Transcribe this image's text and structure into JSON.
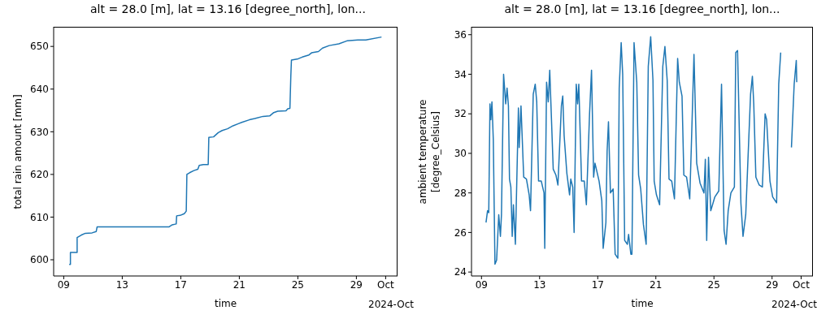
{
  "chart_data": [
    {
      "type": "line",
      "title": "alt = 28.0 [m], lat = 13.16 [degree_north], lon...",
      "xlabel": "time",
      "ylabel": "total rain amount [mm]",
      "annotations": [
        "2024-Oct"
      ],
      "xlim": [
        "2024-09-08T07:30",
        "2024-10-01T19:30"
      ],
      "xticks": [
        {
          "value": "2024-09-09",
          "label": "09"
        },
        {
          "value": "2024-09-13",
          "label": "13"
        },
        {
          "value": "2024-09-17",
          "label": "17"
        },
        {
          "value": "2024-09-21",
          "label": "21"
        },
        {
          "value": "2024-09-25",
          "label": "25"
        },
        {
          "value": "2024-09-29",
          "label": "29"
        },
        {
          "value": "2024-10-01",
          "label": "Oct"
        }
      ],
      "ylim": [
        596.2,
        654.6
      ],
      "yticks": [
        600,
        610,
        620,
        630,
        640,
        650
      ],
      "series": [
        {
          "color": "#1f77b4",
          "x": [
            "2024-09-09T09:00",
            "2024-09-09T11:00",
            "2024-09-09T11:00",
            "2024-09-09T22:00",
            "2024-09-09T22:00",
            "2024-09-10T05:00",
            "2024-09-10T11:30",
            "2024-09-10T22:30",
            "2024-09-11T05:15",
            "2024-09-11T06:45",
            "2024-09-16T04:30",
            "2024-09-16T10:00",
            "2024-09-16T16:30",
            "2024-09-16T17:15",
            "2024-09-16T23:00",
            "2024-09-17T05:45",
            "2024-09-17T09:00",
            "2024-09-17T10:00",
            "2024-09-17T14:30",
            "2024-09-17T21:30",
            "2024-09-18T04:00",
            "2024-09-18T06:15",
            "2024-09-18T13:00",
            "2024-09-18T21:00",
            "2024-09-18T22:00",
            "2024-09-19T05:45",
            "2024-09-19T13:30",
            "2024-09-19T20:00",
            "2024-09-20T04:45",
            "2024-09-20T13:45",
            "2024-09-20T22:30",
            "2024-09-21T04:00",
            "2024-09-21T16:30",
            "2024-09-22T01:30",
            "2024-09-22T14:45",
            "2024-09-23T01:45",
            "2024-09-23T08:30",
            "2024-09-23T15:00",
            "2024-09-24T04:30",
            "2024-09-24T07:30",
            "2024-09-24T11:00",
            "2024-09-24T12:30",
            "2024-09-24T13:30",
            "2024-09-25T00:30",
            "2024-09-25T07:15",
            "2024-09-25T18:15",
            "2024-09-25T22:30",
            "2024-09-26T09:45",
            "2024-09-26T16:30",
            "2024-09-27T03:30",
            "2024-09-27T19:15",
            "2024-09-28T08:30",
            "2024-09-29T02:15",
            "2024-09-29T15:30",
            "2024-09-30T17:15"
          ],
          "values": [
            598.9,
            598.9,
            601.7,
            601.7,
            605.2,
            605.8,
            606.2,
            606.3,
            606.6,
            607.7,
            607.7,
            608.2,
            608.4,
            610.3,
            610.4,
            610.8,
            611.4,
            620.0,
            620.4,
            620.9,
            621.2,
            622.1,
            622.3,
            622.3,
            628.7,
            628.8,
            629.8,
            630.3,
            630.7,
            631.4,
            631.9,
            632.2,
            632.8,
            633.1,
            633.6,
            633.7,
            634.5,
            634.8,
            634.9,
            635.4,
            635.5,
            643.1,
            646.8,
            647.1,
            647.5,
            648.0,
            648.5,
            648.8,
            649.6,
            650.2,
            650.6,
            651.3,
            651.5,
            651.5,
            652.2
          ]
        }
      ]
    },
    {
      "type": "line",
      "title": "alt = 28.0 [m], lat = 13.16 [degree_north], lon...",
      "xlabel": "time",
      "ylabel": "ambient temperature\n[degree_Celsius]",
      "annotations": [
        "2024-Oct"
      ],
      "xlim": [
        "2024-09-08T07:30",
        "2024-10-01T19:30"
      ],
      "xticks": [
        {
          "value": "2024-09-09",
          "label": "09"
        },
        {
          "value": "2024-09-13",
          "label": "13"
        },
        {
          "value": "2024-09-17",
          "label": "17"
        },
        {
          "value": "2024-09-21",
          "label": "21"
        },
        {
          "value": "2024-09-25",
          "label": "25"
        },
        {
          "value": "2024-09-29",
          "label": "29"
        },
        {
          "value": "2024-10-01",
          "label": "Oct"
        }
      ],
      "ylim": [
        23.8,
        36.4
      ],
      "yticks": [
        24,
        26,
        28,
        30,
        32,
        34,
        36
      ],
      "series": [
        {
          "color": "#1f77b4",
          "x": [
            "2024-09-09T07:30",
            "2024-09-09T10:00",
            "2024-09-09T12:00",
            "2024-09-09T14:00",
            "2024-09-09T15:30",
            "2024-09-09T17:15",
            "2024-09-09T19:30",
            "2024-09-09T22:15",
            "2024-09-10T01:00",
            "2024-09-10T04:30",
            "2024-09-10T07:15",
            "2024-09-10T09:00",
            "2024-09-10T12:30",
            "2024-09-10T16:00",
            "2024-09-10T18:15",
            "2024-09-10T20:30",
            "2024-09-10T22:15",
            "2024-09-11T00:30",
            "2024-09-11T02:45",
            "2024-09-11T04:45",
            "2024-09-11T08:00",
            "2024-09-11T13:00",
            "2024-09-11T14:15",
            "2024-09-11T17:15",
            "2024-09-11T21:45",
            "2024-09-12T02:15",
            "2024-09-12T06:45",
            "2024-09-12T09:00",
            "2024-09-12T13:30",
            "2024-09-12T16:45",
            "2024-09-12T19:15",
            "2024-09-12T22:15",
            "2024-09-13T02:45",
            "2024-09-13T07:15",
            "2024-09-13T08:30",
            "2024-09-13T11:30",
            "2024-09-13T14:15",
            "2024-09-13T16:45",
            "2024-09-13T22:30",
            "2024-09-14T03:00",
            "2024-09-14T06:15",
            "2024-09-14T12:00",
            "2024-09-14T14:15",
            "2024-09-14T16:30",
            "2024-09-14T21:00",
            "2024-09-15T01:30",
            "2024-09-15T03:30",
            "2024-09-15T06:45",
            "2024-09-15T09:00",
            "2024-09-15T12:30",
            "2024-09-15T14:45",
            "2024-09-15T16:45",
            "2024-09-15T21:15",
            "2024-09-16T01:45",
            "2024-09-16T05:15",
            "2024-09-16T10:30",
            "2024-09-16T13:45",
            "2024-09-16T17:15",
            "2024-09-16T19:30",
            "2024-09-17T02:15",
            "2024-09-17T06:45",
            "2024-09-17T09:00",
            "2024-09-17T13:30",
            "2024-09-17T15:30",
            "2024-09-17T17:45",
            "2024-09-17T21:00",
            "2024-09-18T01:30",
            "2024-09-18T04:45",
            "2024-09-18T09:15",
            "2024-09-18T11:30",
            "2024-09-18T14:45",
            "2024-09-18T17:15",
            "2024-09-18T20:30",
            "2024-09-19T01:00",
            "2024-09-19T03:00",
            "2024-09-19T06:45",
            "2024-09-19T08:30",
            "2024-09-19T12:00",
            "2024-09-19T16:30",
            "2024-09-19T19:30",
            "2024-09-19T23:00",
            "2024-09-20T03:30",
            "2024-09-20T08:00",
            "2024-09-20T11:30",
            "2024-09-20T15:30",
            "2024-09-20T19:15",
            "2024-09-20T21:15",
            "2024-09-21T01:00",
            "2024-09-21T06:15",
            "2024-09-21T11:30",
            "2024-09-21T15:00",
            "2024-09-21T18:45",
            "2024-09-21T21:45",
            "2024-09-22T02:15",
            "2024-09-22T06:45",
            "2024-09-22T12:00",
            "2024-09-22T14:45",
            "2024-09-22T19:15",
            "2024-09-22T22:15",
            "2024-09-23T02:45",
            "2024-09-23T08:00",
            "2024-09-23T10:30",
            "2024-09-23T15:00",
            "2024-09-23T19:30",
            "2024-09-24T01:00",
            "2024-09-24T07:30",
            "2024-09-24T09:45",
            "2024-09-24T12:00",
            "2024-09-24T15:00",
            "2024-09-24T18:45",
            "2024-09-25T01:30",
            "2024-09-25T08:00",
            "2024-09-25T12:30",
            "2024-09-25T16:45",
            "2024-09-25T20:00",
            "2024-09-25T23:30",
            "2024-09-26T04:00",
            "2024-09-26T09:45",
            "2024-09-26T12:00",
            "2024-09-26T15:00",
            "2024-09-26T20:30",
            "2024-09-27T00:00",
            "2024-09-27T04:30",
            "2024-09-27T12:30",
            "2024-09-27T15:30",
            "2024-09-27T17:45",
            "2024-09-27T21:15",
            "2024-09-28T02:45",
            "2024-09-28T08:00",
            "2024-09-28T12:30",
            "2024-09-28T15:00",
            "2024-09-28T20:30",
            "2024-09-29T01:00",
            "2024-09-29T07:30",
            "2024-09-29T11:00",
            "2024-09-29T14:15",
            "2024-09-30T00:00",
            "2024-09-30T08:00",
            "2024-09-30T12:30",
            "2024-09-30T16:00",
            "2024-09-30T16:45"
          ],
          "values": [
            26.5,
            27.1,
            27.0,
            32.5,
            31.7,
            32.6,
            30.7,
            24.4,
            24.6,
            26.9,
            25.8,
            26.9,
            34.0,
            32.5,
            33.3,
            32.4,
            28.7,
            28.3,
            25.8,
            27.4,
            25.4,
            32.3,
            30.3,
            32.4,
            28.8,
            28.7,
            27.9,
            27.1,
            33.0,
            33.5,
            32.6,
            28.6,
            28.6,
            28.0,
            25.2,
            33.6,
            32.6,
            34.2,
            29.2,
            28.9,
            28.4,
            32.4,
            32.9,
            30.9,
            29.0,
            27.9,
            28.7,
            28.3,
            26.0,
            33.5,
            32.5,
            33.5,
            28.6,
            28.6,
            27.4,
            32.0,
            34.2,
            28.8,
            29.5,
            28.6,
            27.6,
            25.2,
            26.5,
            30.1,
            31.6,
            28.0,
            28.2,
            24.9,
            24.7,
            33.3,
            35.6,
            34.0,
            25.6,
            25.4,
            25.9,
            24.9,
            24.9,
            35.6,
            33.6,
            28.9,
            28.2,
            26.4,
            25.4,
            34.4,
            35.9,
            33.7,
            28.6,
            27.9,
            27.4,
            34.4,
            35.4,
            33.7,
            28.7,
            28.6,
            27.7,
            34.8,
            33.6,
            32.9,
            28.9,
            28.8,
            27.7,
            30.2,
            35.0,
            29.5,
            28.5,
            28.0,
            29.7,
            25.6,
            29.8,
            27.1,
            27.8,
            28.1,
            33.5,
            26.1,
            25.4,
            27.1,
            28.0,
            28.3,
            35.1,
            35.2,
            27.5,
            25.8,
            26.9,
            33.0,
            33.9,
            32.5,
            28.8,
            28.4,
            28.3,
            32.0,
            31.7,
            28.6,
            27.8,
            27.5,
            33.5,
            35.1,
            null,
            30.3,
            33.5,
            34.7,
            33.6
          ]
        }
      ]
    }
  ]
}
